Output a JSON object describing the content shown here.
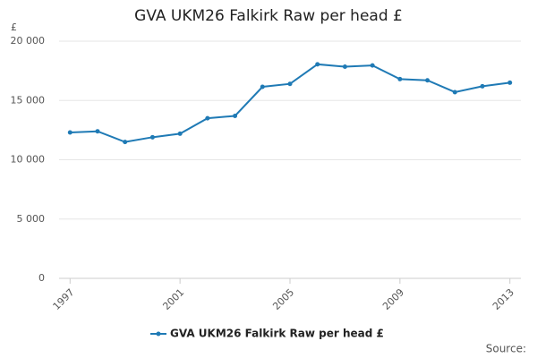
{
  "chart_data": {
    "type": "line",
    "title": "GVA UKM26 Falkirk Raw per head £",
    "y_label": "£",
    "source": "Source:",
    "x": [
      1997,
      1998,
      1999,
      2000,
      2001,
      2002,
      2003,
      2004,
      2005,
      2006,
      2007,
      2008,
      2009,
      2010,
      2011,
      2012,
      2013
    ],
    "series": [
      {
        "name": "GVA UKM26 Falkirk Raw per head £",
        "color": "#1f7ab5",
        "values": [
          12300,
          12400,
          11500,
          11900,
          12200,
          13500,
          13700,
          16150,
          16400,
          18050,
          17850,
          17950,
          16800,
          16700,
          15700,
          16200,
          16500
        ]
      }
    ],
    "xlim": [
      1996.6,
      2013.4
    ],
    "xticks": [
      1997,
      2001,
      2005,
      2009,
      2013
    ],
    "ylim": [
      0,
      20000
    ],
    "yticks": [
      0,
      {
        "value": 5000,
        "label": "5 000"
      },
      {
        "value": 10000,
        "label": "10 000"
      },
      {
        "value": 15000,
        "label": "15 000"
      },
      {
        "value": 20000,
        "label": "20 000"
      }
    ],
    "grid": true,
    "legend": "bottom"
  }
}
